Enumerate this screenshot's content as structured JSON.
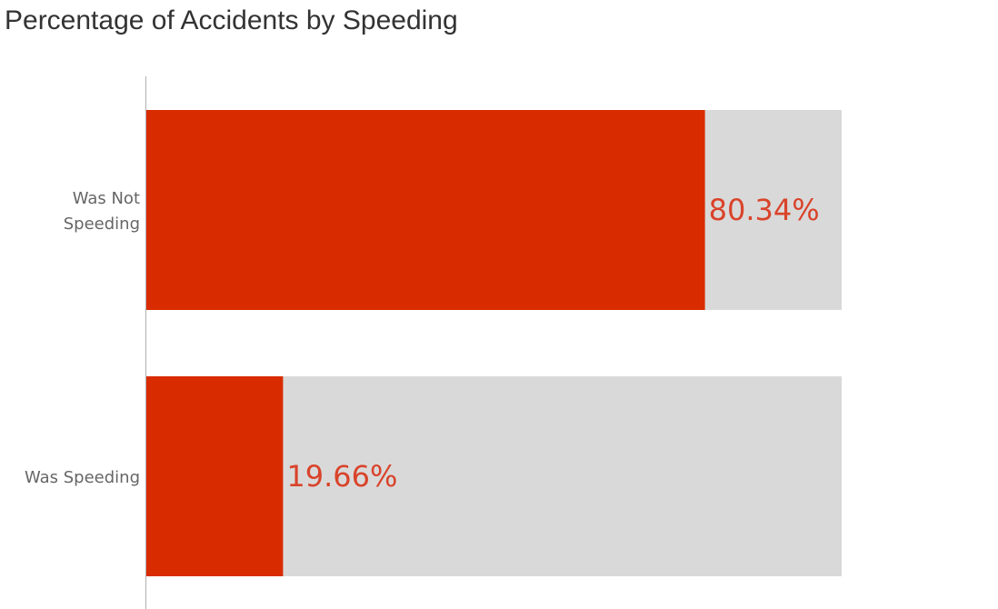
{
  "title": "Percentage of Accidents by Speeding",
  "colors": {
    "bar": "#d92b00",
    "track": "#d9d9d9",
    "value_label": "#d9432a",
    "axis": "#b0b0b0",
    "category_label": "#666666"
  },
  "chart_data": {
    "type": "bar",
    "orientation": "horizontal",
    "title": "Percentage of Accidents by Speeding",
    "xlabel": "",
    "ylabel": "",
    "xlim": [
      0,
      100
    ],
    "grid": false,
    "categories": [
      "Was Not Speeding",
      "Was Speeding"
    ],
    "category_label_lines": [
      [
        "Was Not",
        "Speeding"
      ],
      [
        "Was Speeding"
      ]
    ],
    "values": [
      80.34,
      19.66
    ],
    "value_labels": [
      "80.34%",
      "19.66%"
    ]
  }
}
